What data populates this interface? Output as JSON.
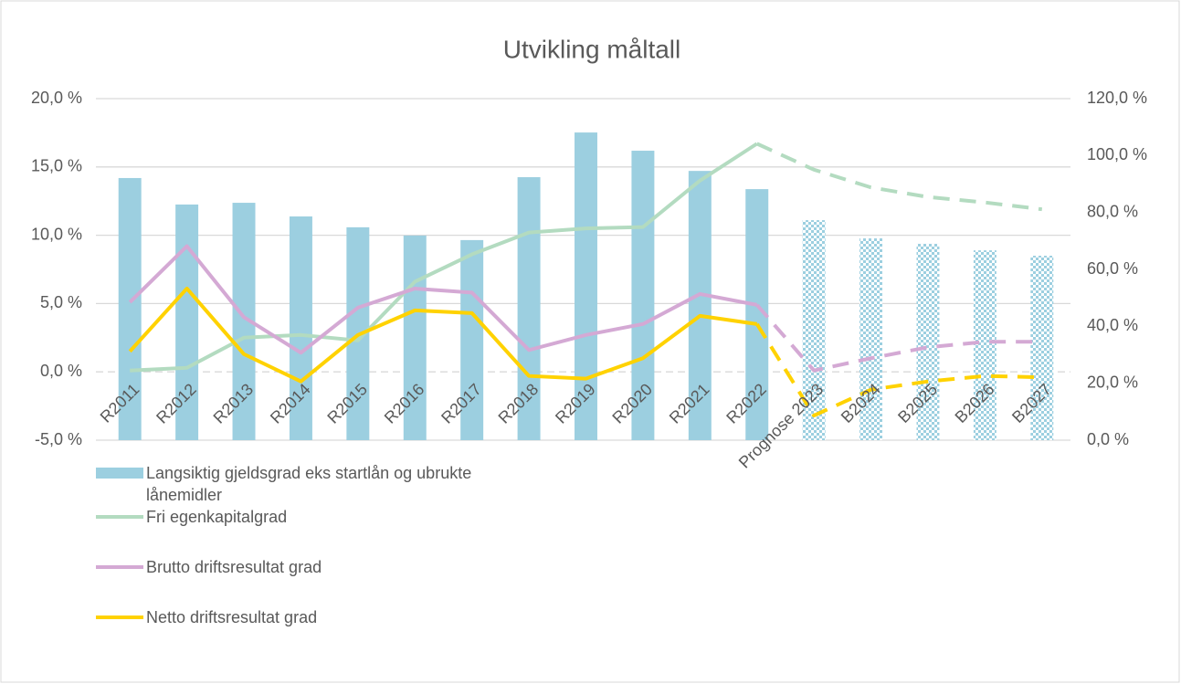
{
  "chart_data": {
    "type": "bar-line",
    "title": "Utvikling måltall",
    "categories": [
      "R2011",
      "R2012",
      "R2013",
      "R2014",
      "R2015",
      "R2016",
      "R2017",
      "R2018",
      "R2019",
      "R2020",
      "R2021",
      "R2022",
      "Prognose 2023",
      "B2024",
      "B2025",
      "B2026",
      "B2027"
    ],
    "patterned": [
      false,
      false,
      false,
      false,
      false,
      false,
      false,
      false,
      false,
      false,
      false,
      false,
      true,
      true,
      true,
      true,
      true
    ],
    "dashed_from": 11,
    "series": [
      {
        "name": "Langsiktig gjeldsgrad eks startlån og ubrukte lånemidler",
        "type": "bar",
        "axis": "y2",
        "color": "#9ccfe0",
        "values": [
          92.1,
          82.8,
          83.4,
          78.6,
          74.8,
          71.9,
          70.3,
          92.4,
          108.1,
          101.7,
          94.6,
          88.2,
          77.3,
          70.9,
          69.0,
          66.7,
          64.8
        ]
      },
      {
        "name": "Fri egenkapitalgrad",
        "type": "line",
        "axis": "y",
        "color": "#b3dbc0",
        "values": [
          0.1,
          0.3,
          2.5,
          2.7,
          2.3,
          6.6,
          8.6,
          10.2,
          10.5,
          10.6,
          14.0,
          16.7,
          14.8,
          13.5,
          12.8,
          12.4,
          11.9
        ]
      },
      {
        "name": "Brutto driftsresultat grad",
        "type": "line",
        "axis": "y",
        "color": "#d4a9d4",
        "values": [
          5.1,
          9.2,
          4.0,
          1.4,
          4.7,
          6.1,
          5.8,
          1.6,
          2.7,
          3.5,
          5.7,
          4.9,
          0.1,
          1.0,
          1.8,
          2.2,
          2.2
        ]
      },
      {
        "name": "Netto driftsresultat grad",
        "type": "line",
        "axis": "y",
        "color": "#ffd200",
        "values": [
          1.5,
          6.1,
          1.3,
          -0.7,
          2.7,
          4.5,
          4.3,
          -0.3,
          -0.5,
          1.0,
          4.1,
          3.5,
          -3.2,
          -1.3,
          -0.7,
          -0.3,
          -0.4
        ]
      }
    ],
    "ylim": [
      -5,
      20
    ],
    "yticks": [
      {
        "value": -5,
        "label": "-5,0 %"
      },
      {
        "value": 0,
        "label": "0,0 %"
      },
      {
        "value": 5,
        "label": "5,0 %"
      },
      {
        "value": 10,
        "label": "10,0 %"
      },
      {
        "value": 15,
        "label": "15,0 %"
      },
      {
        "value": 20,
        "label": "20,0 %"
      }
    ],
    "y2lim": [
      0,
      120
    ],
    "y2ticks": [
      {
        "value": 0,
        "label": "0,0 %"
      },
      {
        "value": 20,
        "label": "20,0 %"
      },
      {
        "value": 40,
        "label": "40,0 %"
      },
      {
        "value": 60,
        "label": "60,0 %"
      },
      {
        "value": 80,
        "label": "80,0 %"
      },
      {
        "value": 100,
        "label": "100,0 %"
      },
      {
        "value": 120,
        "label": "120,0 %"
      }
    ],
    "grid": true,
    "legend": "bottom-left"
  }
}
